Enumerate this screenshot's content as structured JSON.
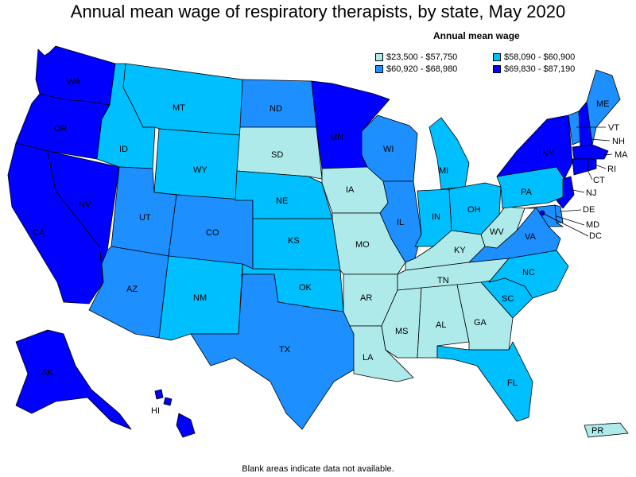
{
  "title": "Annual mean wage of respiratory therapists, by state, May 2020",
  "legend": {
    "title": "Annual mean wage",
    "items": [
      {
        "label": "$23,500 - $57,750",
        "color": "#aeeaea"
      },
      {
        "label": "$58,090 - $60,900",
        "color": "#00bfff"
      },
      {
        "label": "$60,920 - $68,980",
        "color": "#1e8fff"
      },
      {
        "label": "$69,830 - $87,190",
        "color": "#0000ff"
      }
    ]
  },
  "footer": "Blank areas indicate data not available.",
  "states": {
    "WA": {
      "label": "WA",
      "tier": 3
    },
    "OR": {
      "label": "OR",
      "tier": 3
    },
    "CA": {
      "label": "CA",
      "tier": 3
    },
    "NV": {
      "label": "NV",
      "tier": 3
    },
    "ID": {
      "label": "ID",
      "tier": 1
    },
    "MT": {
      "label": "MT",
      "tier": 1
    },
    "WY": {
      "label": "WY",
      "tier": 1
    },
    "UT": {
      "label": "UT",
      "tier": 2
    },
    "AZ": {
      "label": "AZ",
      "tier": 2
    },
    "CO": {
      "label": "CO",
      "tier": 2
    },
    "NM": {
      "label": "NM",
      "tier": 1
    },
    "ND": {
      "label": "ND",
      "tier": 2
    },
    "SD": {
      "label": "SD",
      "tier": 0
    },
    "NE": {
      "label": "NE",
      "tier": 1
    },
    "KS": {
      "label": "KS",
      "tier": 1
    },
    "OK": {
      "label": "OK",
      "tier": 1
    },
    "TX": {
      "label": "TX",
      "tier": 2
    },
    "MN": {
      "label": "MN",
      "tier": 3
    },
    "IA": {
      "label": "IA",
      "tier": 0
    },
    "MO": {
      "label": "MO",
      "tier": 0
    },
    "AR": {
      "label": "AR",
      "tier": 0
    },
    "LA": {
      "label": "LA",
      "tier": 0
    },
    "WI": {
      "label": "WI",
      "tier": 2
    },
    "IL": {
      "label": "IL",
      "tier": 2
    },
    "MI": {
      "label": "MI",
      "tier": 1
    },
    "IN": {
      "label": "IN",
      "tier": 1
    },
    "OH": {
      "label": "OH",
      "tier": 1
    },
    "KY": {
      "label": "KY",
      "tier": 0
    },
    "TN": {
      "label": "TN",
      "tier": 0
    },
    "MS": {
      "label": "MS",
      "tier": 0
    },
    "AL": {
      "label": "AL",
      "tier": 0
    },
    "GA": {
      "label": "GA",
      "tier": 0
    },
    "FL": {
      "label": "FL",
      "tier": 1
    },
    "SC": {
      "label": "SC",
      "tier": 1
    },
    "NC": {
      "label": "NC",
      "tier": 1
    },
    "VA": {
      "label": "VA",
      "tier": 2
    },
    "WV": {
      "label": "WV",
      "tier": 0
    },
    "PA": {
      "label": "PA",
      "tier": 1
    },
    "NY": {
      "label": "NY",
      "tier": 3
    },
    "VT": {
      "label": "VT",
      "tier": 2
    },
    "NH": {
      "label": "NH",
      "tier": 3
    },
    "ME": {
      "label": "ME",
      "tier": 2
    },
    "MA": {
      "label": "MA",
      "tier": 3
    },
    "RI": {
      "label": "RI",
      "tier": 3
    },
    "CT": {
      "label": "CT",
      "tier": 3
    },
    "NJ": {
      "label": "NJ",
      "tier": 3
    },
    "DE": {
      "label": "DE",
      "tier": 2
    },
    "MD": {
      "label": "MD",
      "tier": 2
    },
    "DC": {
      "label": "DC",
      "tier": 3
    },
    "AK": {
      "label": "AK",
      "tier": 3
    },
    "HI": {
      "label": "HI",
      "tier": 3
    },
    "PR": {
      "label": "PR",
      "tier": 0
    }
  }
}
